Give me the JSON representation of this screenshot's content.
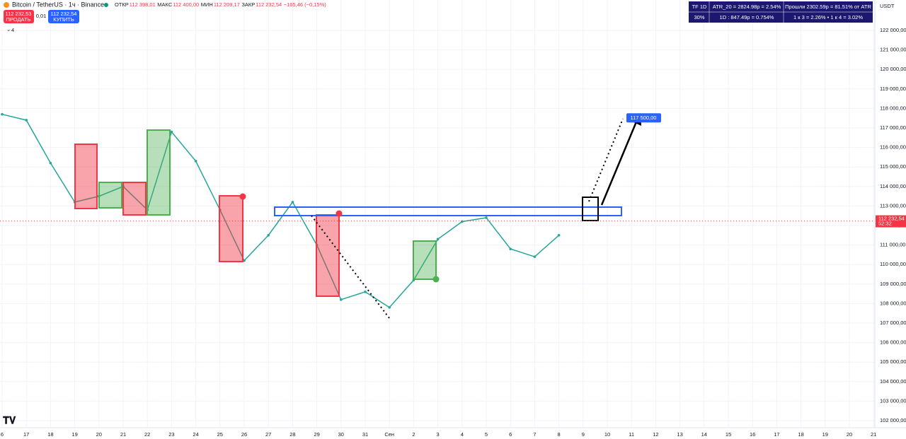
{
  "header": {
    "symbol": "Bitcoin / TetherUS · 1ч · Binance",
    "ohlc": [
      [
        "ОТКР",
        "112 398,01"
      ],
      [
        "МАКС",
        "112 400,00"
      ],
      [
        "МИН",
        "112 209,17"
      ],
      [
        "ЗАКР",
        "112 232,54"
      ]
    ],
    "change": "−165,46 (−0,15%)",
    "sell": {
      "price": "112 232,53",
      "label": "ПРОДАТЬ"
    },
    "spread": "0,01",
    "buy": {
      "price": "112 232,54",
      "label": "КУПИТЬ"
    },
    "indicators": "4",
    "currency": "USDT"
  },
  "info_table": {
    "rows": [
      [
        "TF 1D",
        "ATR_20 = 2824.98р = 2.54%",
        "Прошли 2302.59р = 81.51% от ATR"
      ],
      [
        "30%",
        "1D : 847.49р = 0.754%",
        "1 к 3 = 2.26%   •   1 к 4 = 3.02%"
      ]
    ]
  },
  "chart_data": {
    "type": "line",
    "categories": [
      "6",
      "17",
      "18",
      "19",
      "20",
      "21",
      "22",
      "23",
      "24",
      "25",
      "26",
      "27",
      "28",
      "29",
      "30",
      "31",
      "Сен",
      "2",
      "3",
      "4",
      "5",
      "6",
      "7",
      "8",
      "9",
      "10",
      "11",
      "12",
      "13",
      "14",
      "15",
      "16",
      "17",
      "18",
      "19",
      "20",
      "21"
    ],
    "values": [
      117700,
      117400,
      115200,
      113200,
      113500,
      114000,
      112800,
      116800,
      115300,
      112800,
      110200,
      111500,
      113200,
      111000,
      108200,
      108600,
      107800,
      109200,
      111300,
      112200,
      112400,
      110800,
      110400,
      111500,
      null,
      null,
      null,
      null,
      null,
      null,
      null,
      null,
      null,
      null,
      null,
      null,
      null
    ],
    "color": "#26a69a",
    "ylim": [
      101700,
      123000
    ],
    "yticks": [
      {
        "value": 102000,
        "label": "102 000,00"
      },
      {
        "value": 103000,
        "label": "103 000,00"
      },
      {
        "value": 104000,
        "label": "104 000,00"
      },
      {
        "value": 105000,
        "label": "105 000,00"
      },
      {
        "value": 106000,
        "label": "106 000,00"
      },
      {
        "value": 107000,
        "label": "107 000,00"
      },
      {
        "value": 108000,
        "label": "108 000,00"
      },
      {
        "value": 109000,
        "label": "109 000,00"
      },
      {
        "value": 110000,
        "label": "110 000,00"
      },
      {
        "value": 111000,
        "label": "111 000,00"
      },
      {
        "value": 112000,
        "label": "112 000,00"
      },
      {
        "value": 113000,
        "label": "113 000,00"
      },
      {
        "value": 114000,
        "label": "114 000,00"
      },
      {
        "value": 115000,
        "label": "115 000,00"
      },
      {
        "value": 116000,
        "label": "116 000,00"
      },
      {
        "value": 117000,
        "label": "117 000,00"
      },
      {
        "value": 118000,
        "label": "118 000,00"
      },
      {
        "value": 119000,
        "label": "119 000,00"
      },
      {
        "value": 120000,
        "label": "120 000,00"
      },
      {
        "value": 121000,
        "label": "121 000,00"
      },
      {
        "value": 122000,
        "label": "122 000,00"
      }
    ],
    "target": {
      "value": 117500,
      "label": "117 500,00"
    },
    "last_price": {
      "value": 112232.54,
      "label": "112 232,54"
    },
    "countdown": "52:32"
  }
}
